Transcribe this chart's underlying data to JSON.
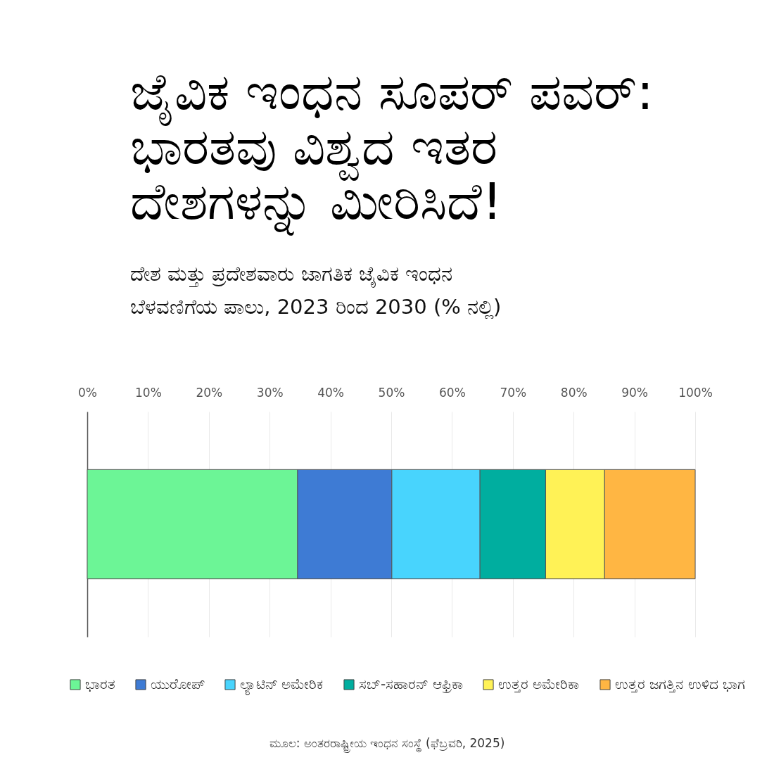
{
  "chart_data": {
    "type": "bar",
    "orientation": "horizontal",
    "stacked": true,
    "title": "ಜೈವಿಕ ಇಂಧನ ಸೂಪರ್ ಪವರ್: ಭಾರತವು ವಿಶ್ವದ ಇತರ ದೇಶಗಳನ್ನು ಮೀರಿಸಿದೆ!",
    "subtitle": "ದೇಶ ಮತ್ತು ಪ್ರದೇಶವಾರು ಜಾಗತಿಕ ಜೈವಿಕ ಇಂಧನ ಬೆಳವಣಿಗೆಯ ಪಾಲು, 2023 ರಿಂದ 2030 (% ನಲ್ಲಿ)",
    "categories": [
      null
    ],
    "series": [
      {
        "name": "ಭಾರತ",
        "color": "#6cf596",
        "values": [
          34.6
        ]
      },
      {
        "name": "ಯುರೋಪ್",
        "color": "#3e7bd4",
        "values": [
          15.5
        ]
      },
      {
        "name": "ಲ್ಯಾಟಿನ್ ಅಮೇರಿಕ",
        "color": "#48d4fd",
        "values": [
          14.5
        ]
      },
      {
        "name": "ಸಬ್-ಸಹಾರನ್ ಆಫ್ರಿಕಾ",
        "color": "#00ae9f",
        "values": [
          10.8
        ]
      },
      {
        "name": "ಉತ್ತರ ಅಮೇರಿಕಾ",
        "color": "#fff256",
        "values": [
          9.7
        ]
      },
      {
        "name": "ಉತ್ತರ ಜಗತ್ತಿನ ಉಳಿದ ಭಾಗ",
        "color": "#ffb643",
        "values": [
          14.9
        ]
      }
    ],
    "xlim": [
      0,
      100
    ],
    "xticks": [
      {
        "value": 0,
        "label": "0%"
      },
      {
        "value": 10,
        "label": "10%"
      },
      {
        "value": 20,
        "label": "20%"
      },
      {
        "value": 30,
        "label": "30%"
      },
      {
        "value": 40,
        "label": "40%"
      },
      {
        "value": 50,
        "label": "50%"
      },
      {
        "value": 60,
        "label": "60%"
      },
      {
        "value": 70,
        "label": "70%"
      },
      {
        "value": 80,
        "label": "80%"
      },
      {
        "value": 90,
        "label": "90%"
      },
      {
        "value": 100,
        "label": "100%"
      }
    ],
    "grid": "x",
    "legend": "bottom",
    "tick_labels": "x",
    "annotations": [
      "ಮೂಲ: ಅಂತರರಾಷ್ಟ್ರೀಯ ಇಂಧನ ಸಂಸ್ಥೆ (ಫೆಬ್ರವರಿ, 2025)"
    ]
  }
}
